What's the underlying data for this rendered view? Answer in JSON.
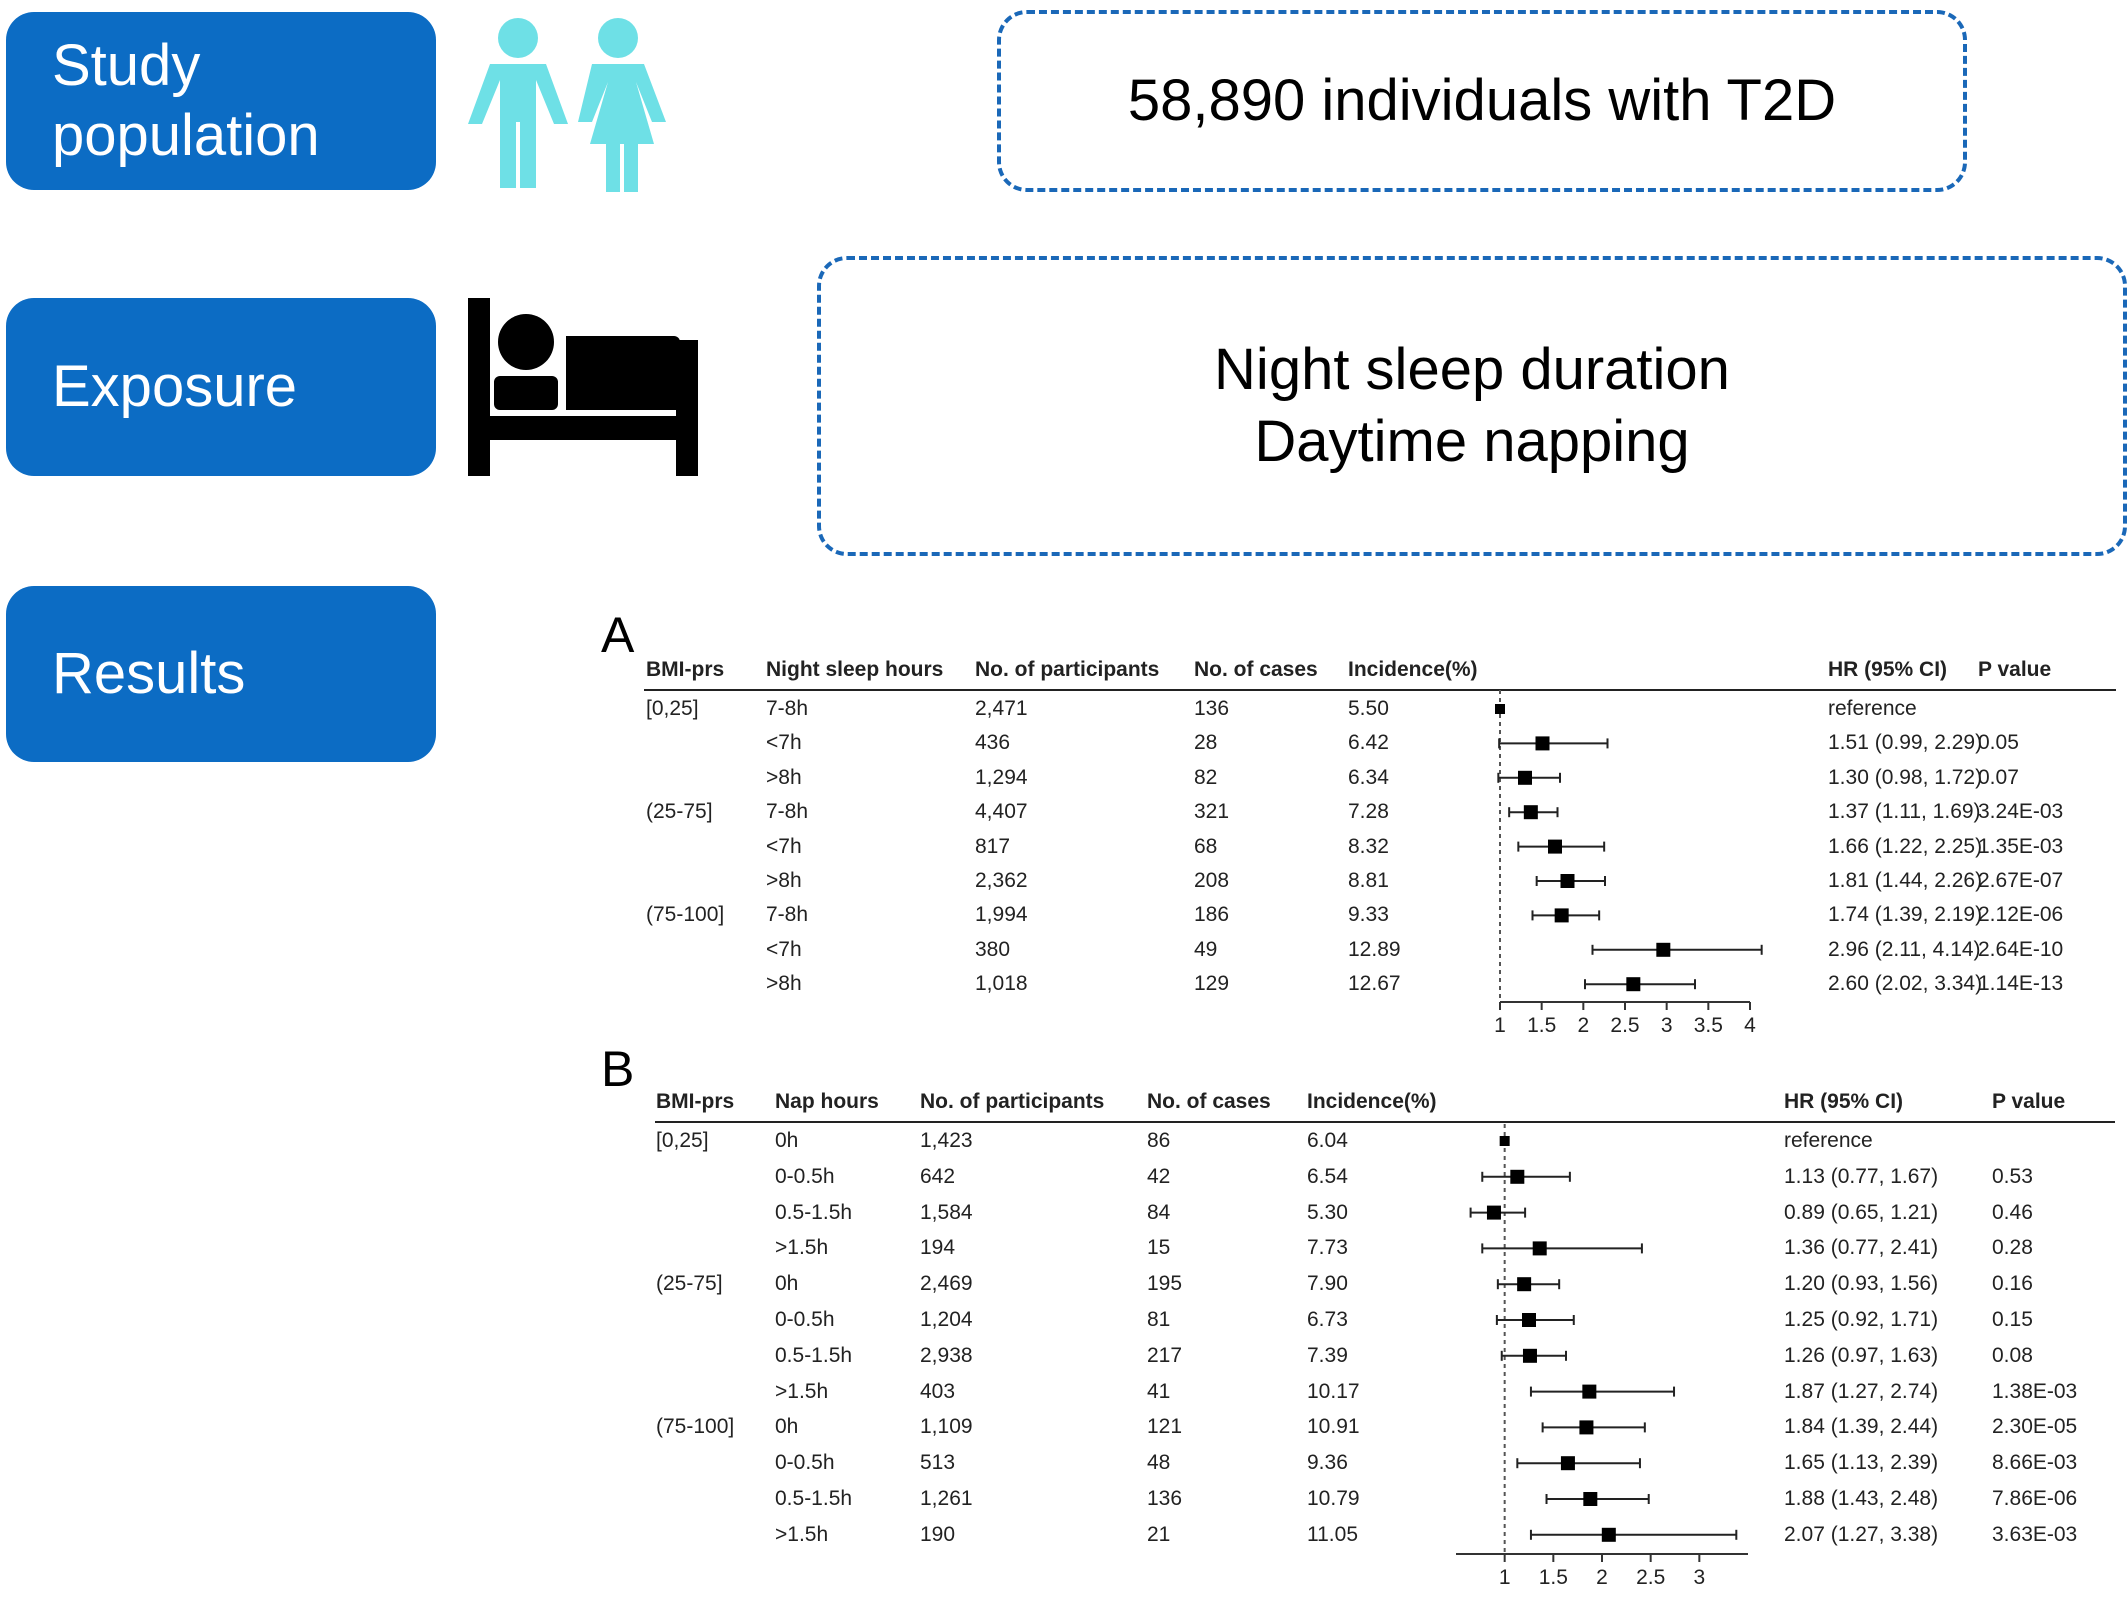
{
  "sections": {
    "study_population": {
      "line1": "Study",
      "line2": "population",
      "summary": "58,890 individuals with T2D"
    },
    "exposure": {
      "label": "Exposure",
      "line1": "Night sleep duration",
      "line2": "Daytime napping"
    },
    "results": {
      "label": "Results"
    }
  },
  "icons": {
    "population": "man-woman-icon",
    "exposure": "bed-sleeping-icon"
  },
  "colors": {
    "pill_blue": "#0c6cc4",
    "people_teal": "#6ee0e6",
    "dashed_border": "#1a68b8"
  },
  "panel_a": {
    "letter": "A",
    "headers": [
      "BMI-prs",
      "Night sleep hours",
      "No. of participants",
      "No. of cases",
      "Incidence(%)",
      "HR (95% CI)",
      "P value"
    ],
    "rows": [
      {
        "group": "[0,25]",
        "level": "7-8h",
        "n": "2,471",
        "cases": "136",
        "inc": "5.50",
        "hr_text": "reference",
        "p": ""
      },
      {
        "group": "",
        "level": "<7h",
        "n": "436",
        "cases": "28",
        "inc": "6.42",
        "hr_text": "1.51 (0.99, 2.29)",
        "p": "0.05"
      },
      {
        "group": "",
        "level": ">8h",
        "n": "1,294",
        "cases": "82",
        "inc": "6.34",
        "hr_text": "1.30 (0.98, 1.72)",
        "p": "0.07"
      },
      {
        "group": "(25-75]",
        "level": "7-8h",
        "n": "4,407",
        "cases": "321",
        "inc": "7.28",
        "hr_text": "1.37 (1.11, 1.69)",
        "p": "3.24E-03"
      },
      {
        "group": "",
        "level": "<7h",
        "n": "817",
        "cases": "68",
        "inc": "8.32",
        "hr_text": "1.66 (1.22, 2.25)",
        "p": "1.35E-03"
      },
      {
        "group": "",
        "level": ">8h",
        "n": "2,362",
        "cases": "208",
        "inc": "8.81",
        "hr_text": "1.81 (1.44, 2.26)",
        "p": "2.67E-07"
      },
      {
        "group": "(75-100]",
        "level": "7-8h",
        "n": "1,994",
        "cases": "186",
        "inc": "9.33",
        "hr_text": "1.74 (1.39, 2.19)",
        "p": "2.12E-06"
      },
      {
        "group": "",
        "level": "<7h",
        "n": "380",
        "cases": "49",
        "inc": "12.89",
        "hr_text": "2.96 (2.11, 4.14)",
        "p": "2.64E-10"
      },
      {
        "group": "",
        "level": ">8h",
        "n": "1,018",
        "cases": "129",
        "inc": "12.67",
        "hr_text": "2.60 (2.02, 3.34)",
        "p": "1.14E-13"
      }
    ],
    "axis": {
      "min": 1,
      "max": 4,
      "ticks": [
        "1",
        "1.5",
        "2",
        "2.5",
        "3",
        "3.5",
        "4"
      ]
    }
  },
  "panel_b": {
    "letter": "B",
    "headers": [
      "BMI-prs",
      "Nap hours",
      "No. of participants",
      "No. of cases",
      "Incidence(%)",
      "HR (95% CI)",
      "P value"
    ],
    "rows": [
      {
        "group": "[0,25]",
        "level": "0h",
        "n": "1,423",
        "cases": "86",
        "inc": "6.04",
        "hr_text": "reference",
        "p": ""
      },
      {
        "group": "",
        "level": "0-0.5h",
        "n": "642",
        "cases": "42",
        "inc": "6.54",
        "hr_text": "1.13 (0.77, 1.67)",
        "p": "0.53"
      },
      {
        "group": "",
        "level": "0.5-1.5h",
        "n": "1,584",
        "cases": "84",
        "inc": "5.30",
        "hr_text": "0.89 (0.65, 1.21)",
        "p": "0.46"
      },
      {
        "group": "",
        "level": ">1.5h",
        "n": "194",
        "cases": "15",
        "inc": "7.73",
        "hr_text": "1.36 (0.77, 2.41)",
        "p": "0.28"
      },
      {
        "group": "(25-75]",
        "level": "0h",
        "n": "2,469",
        "cases": "195",
        "inc": "7.90",
        "hr_text": "1.20 (0.93, 1.56)",
        "p": "0.16"
      },
      {
        "group": "",
        "level": "0-0.5h",
        "n": "1,204",
        "cases": "81",
        "inc": "6.73",
        "hr_text": "1.25 (0.92, 1.71)",
        "p": "0.15"
      },
      {
        "group": "",
        "level": "0.5-1.5h",
        "n": "2,938",
        "cases": "217",
        "inc": "7.39",
        "hr_text": "1.26 (0.97, 1.63)",
        "p": "0.08"
      },
      {
        "group": "",
        "level": ">1.5h",
        "n": "403",
        "cases": "41",
        "inc": "10.17",
        "hr_text": "1.87 (1.27, 2.74)",
        "p": "1.38E-03"
      },
      {
        "group": "(75-100]",
        "level": "0h",
        "n": "1,109",
        "cases": "121",
        "inc": "10.91",
        "hr_text": "1.84 (1.39, 2.44)",
        "p": "2.30E-05"
      },
      {
        "group": "",
        "level": "0-0.5h",
        "n": "513",
        "cases": "48",
        "inc": "9.36",
        "hr_text": "1.65 (1.13, 2.39)",
        "p": "8.66E-03"
      },
      {
        "group": "",
        "level": "0.5-1.5h",
        "n": "1,261",
        "cases": "136",
        "inc": "10.79",
        "hr_text": "1.88 (1.43, 2.48)",
        "p": "7.86E-06"
      },
      {
        "group": "",
        "level": ">1.5h",
        "n": "190",
        "cases": "21",
        "inc": "11.05",
        "hr_text": "2.07 (1.27, 3.38)",
        "p": "3.63E-03"
      }
    ],
    "axis": {
      "min": 0.5,
      "max": 3.5,
      "ticks": [
        "1",
        "1.5",
        "2",
        "2.5",
        "3"
      ]
    }
  },
  "chart_data": [
    {
      "type": "forest",
      "x": [
        1,
        1.51,
        1.3,
        1.37,
        1.66,
        1.81,
        1.74,
        2.96,
        2.6
      ],
      "ci_low": [
        1,
        0.99,
        0.98,
        1.11,
        1.22,
        1.44,
        1.39,
        2.11,
        2.02
      ],
      "ci_high": [
        1,
        2.29,
        1.72,
        1.69,
        2.25,
        2.26,
        2.19,
        4.14,
        3.34
      ],
      "reference_line": 1,
      "xlim": [
        1,
        4
      ]
    },
    {
      "type": "forest",
      "x": [
        1,
        1.13,
        0.89,
        1.36,
        1.2,
        1.25,
        1.26,
        1.87,
        1.84,
        1.65,
        1.88,
        2.07
      ],
      "ci_low": [
        1,
        0.77,
        0.65,
        0.77,
        0.93,
        0.92,
        0.97,
        1.27,
        1.39,
        1.13,
        1.43,
        1.27
      ],
      "ci_high": [
        1,
        1.67,
        1.21,
        2.41,
        1.56,
        1.71,
        1.63,
        2.74,
        2.44,
        2.39,
        2.48,
        3.38
      ],
      "reference_line": 1,
      "xlim": [
        0.5,
        3.5
      ]
    }
  ]
}
